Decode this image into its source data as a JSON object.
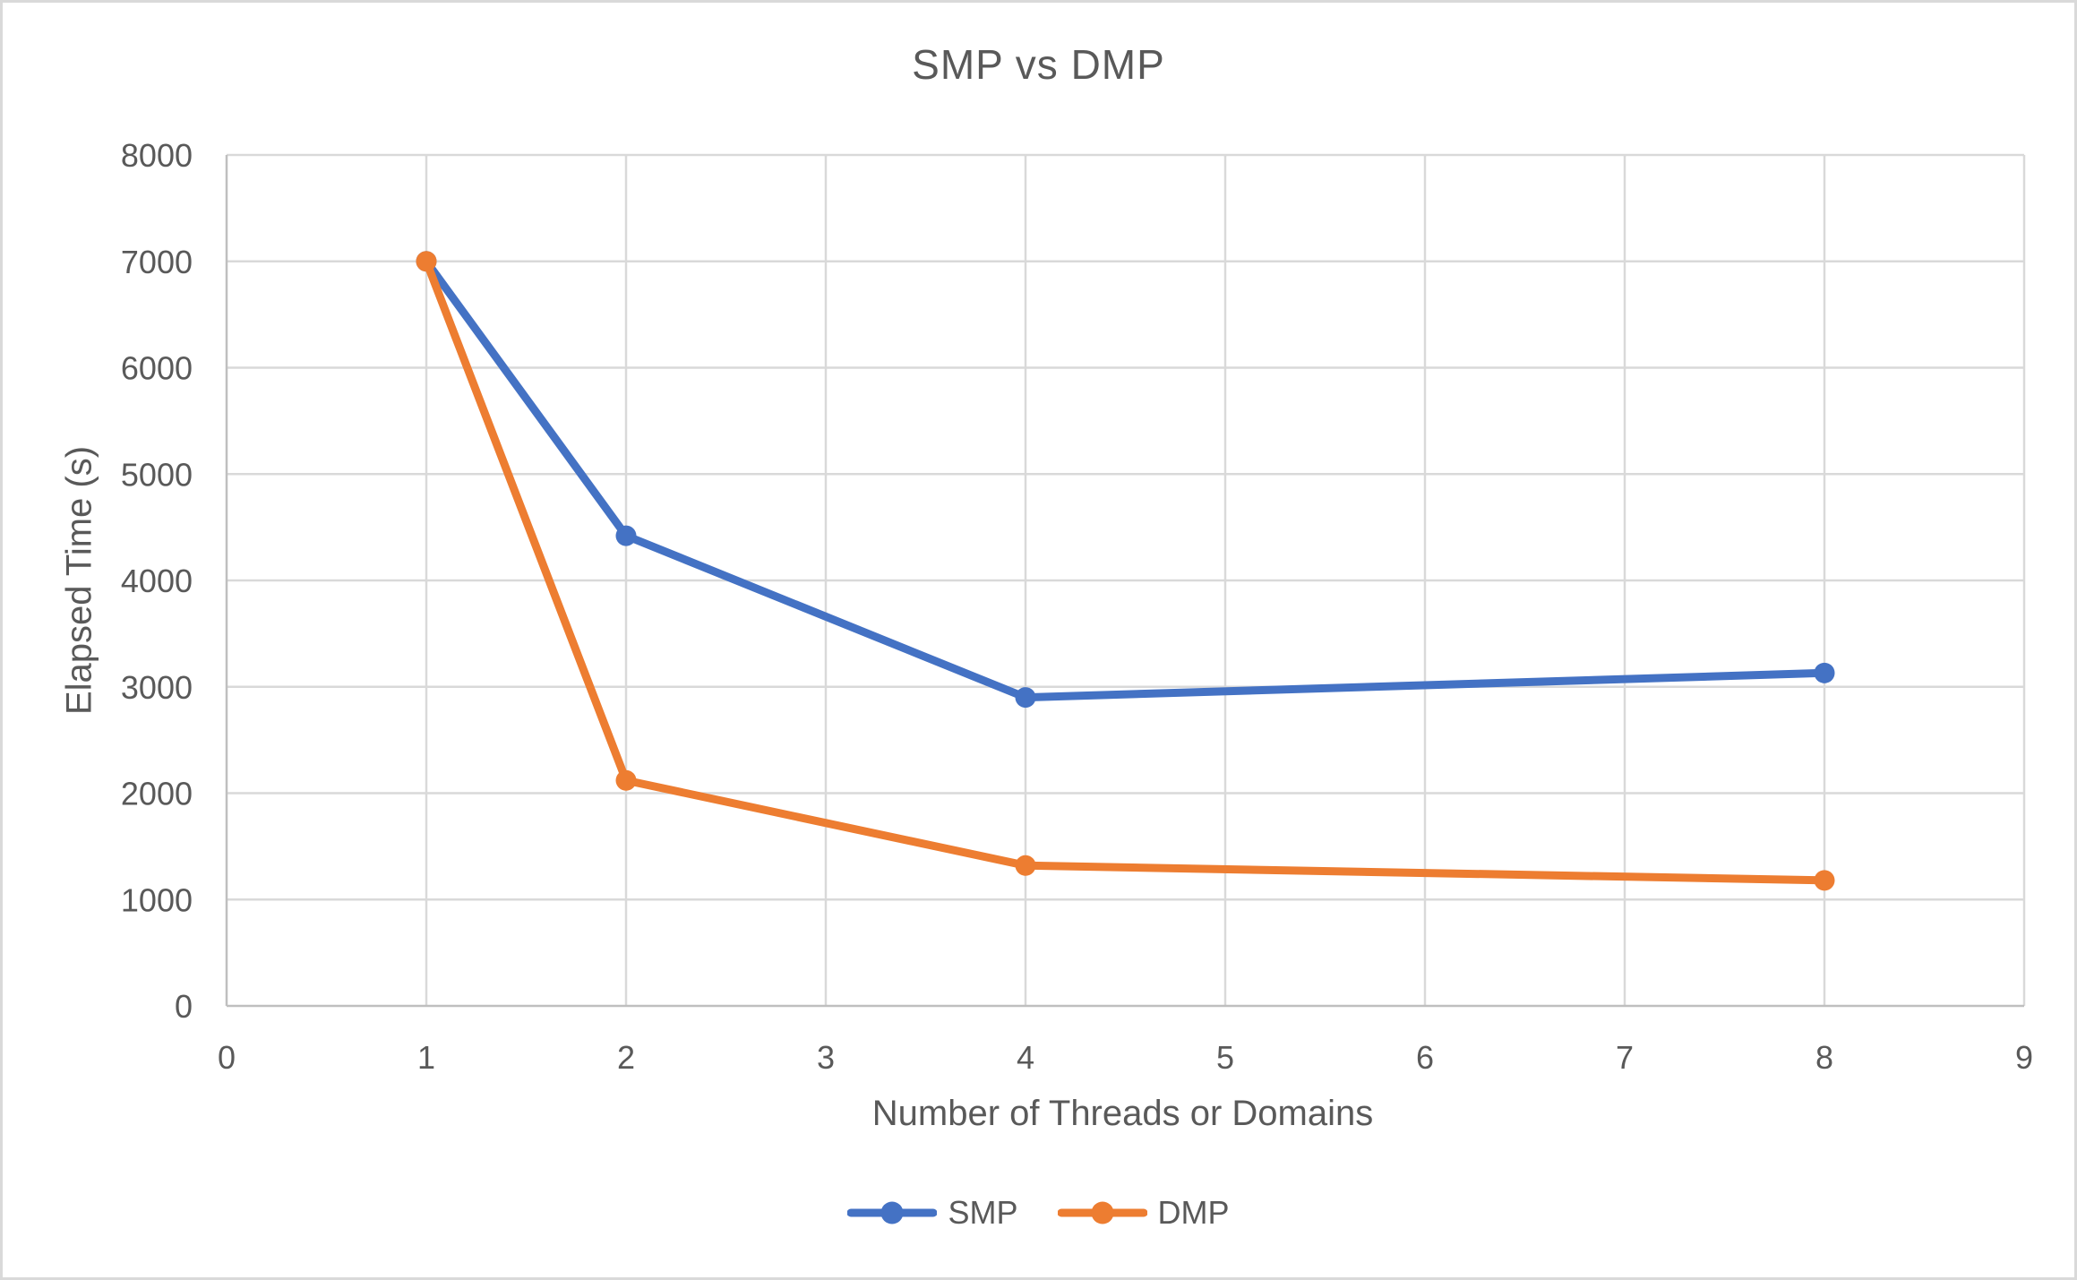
{
  "chart_data": {
    "type": "line",
    "title": "SMP vs DMP",
    "xlabel": "Number of Threads or Domains",
    "ylabel": "Elapsed Time (s)",
    "x": [
      1,
      2,
      4,
      8
    ],
    "series": [
      {
        "name": "SMP",
        "color": "#4472C4",
        "values": [
          7000,
          4420,
          2900,
          3130
        ]
      },
      {
        "name": "DMP",
        "color": "#ED7D31",
        "values": [
          7000,
          2120,
          1320,
          1180
        ]
      }
    ],
    "xlim": [
      0,
      9
    ],
    "ylim": [
      0,
      8000
    ],
    "xticks": [
      0,
      1,
      2,
      3,
      4,
      5,
      6,
      7,
      8,
      9
    ],
    "yticks": [
      0,
      1000,
      2000,
      3000,
      4000,
      5000,
      6000,
      7000,
      8000
    ],
    "grid": true,
    "legend_position": "bottom",
    "marker": "circle",
    "styles": {
      "text_color": "#595959",
      "gridline_color": "#D9D9D9",
      "axis_line_color": "#BFBFBF",
      "background": "#FFFFFF",
      "border_color": "#D9D9D9"
    }
  }
}
